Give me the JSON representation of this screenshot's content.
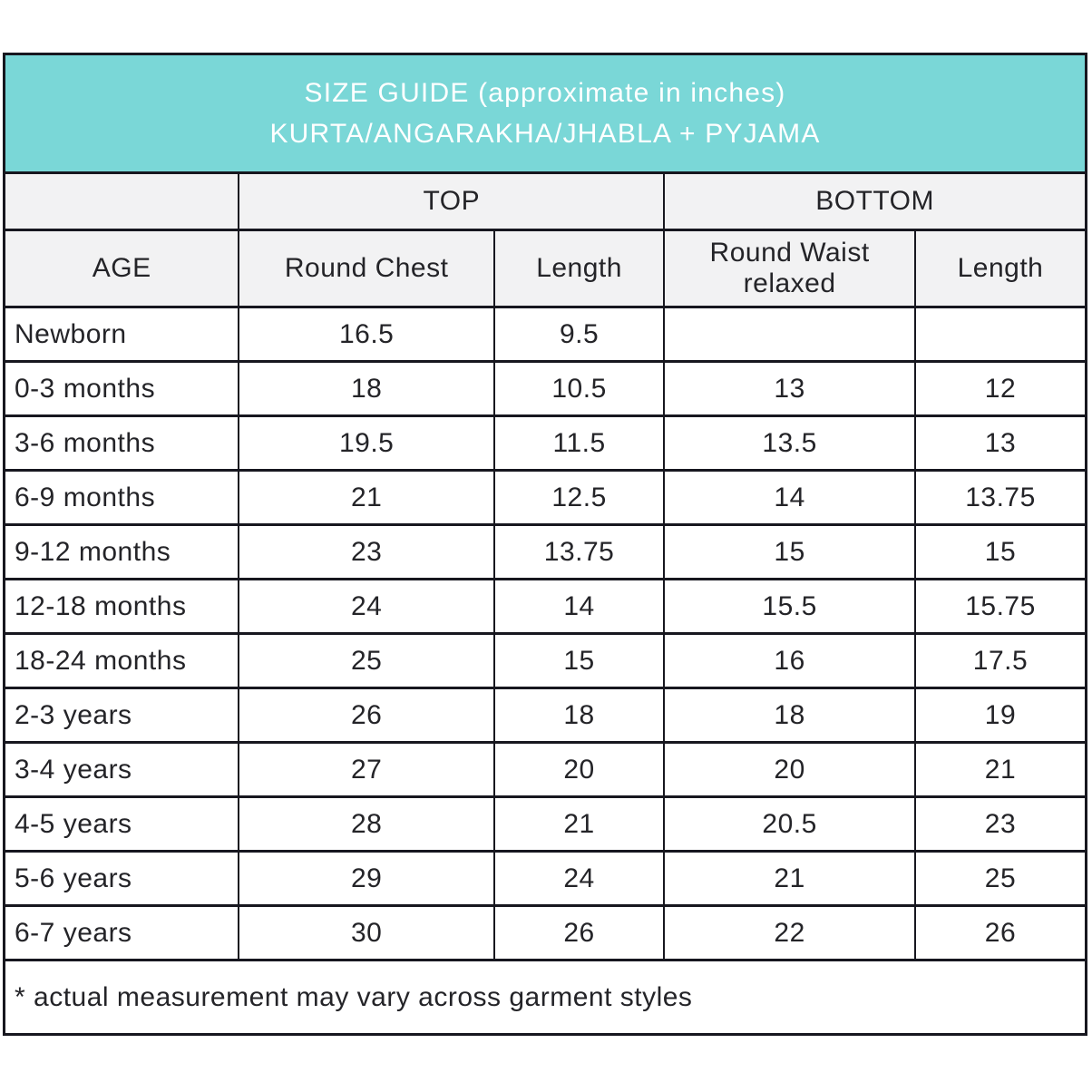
{
  "header": {
    "title_line1": "SIZE GUIDE (approximate in inches)",
    "title_line2": "KURTA/ANGARAKHA/JHABLA + PYJAMA"
  },
  "group_headers": {
    "age_spacer": "",
    "top": "TOP",
    "bottom": "BOTTOM"
  },
  "column_headers": {
    "age": "AGE",
    "top_round_chest": "Round Chest",
    "top_length": "Length",
    "bottom_round_waist": "Round Waist relaxed",
    "bottom_length": "Length"
  },
  "footnote": "* actual measurement may vary across garment styles",
  "colors": {
    "header_bg": "#7ad7d7",
    "header_text": "#ffffff",
    "subheader_bg": "#f2f2f3",
    "border": "#17171f",
    "text": "#242428"
  },
  "chart_data": {
    "type": "table",
    "title": "SIZE GUIDE (approximate in inches) KURTA/ANGARAKHA/JHABLA + PYJAMA",
    "column_groups": [
      "",
      "TOP",
      "TOP",
      "BOTTOM",
      "BOTTOM"
    ],
    "columns": [
      "AGE",
      "Round Chest",
      "Length",
      "Round Waist relaxed",
      "Length"
    ],
    "rows": [
      [
        "Newborn",
        "16.5",
        "9.5",
        "",
        ""
      ],
      [
        "0-3 months",
        "18",
        "10.5",
        "13",
        "12"
      ],
      [
        "3-6 months",
        "19.5",
        "11.5",
        "13.5",
        "13"
      ],
      [
        "6-9 months",
        "21",
        "12.5",
        "14",
        "13.75"
      ],
      [
        "9-12 months",
        "23",
        "13.75",
        "15",
        "15"
      ],
      [
        "12-18 months",
        "24",
        "14",
        "15.5",
        "15.75"
      ],
      [
        "18-24 months",
        "25",
        "15",
        "16",
        "17.5"
      ],
      [
        "2-3 years",
        "26",
        "18",
        "18",
        "19"
      ],
      [
        "3-4 years",
        "27",
        "20",
        "20",
        "21"
      ],
      [
        "4-5 years",
        "28",
        "21",
        "20.5",
        "23"
      ],
      [
        "5-6 years",
        "29",
        "24",
        "21",
        "25"
      ],
      [
        "6-7 years",
        "30",
        "26",
        "22",
        "26"
      ]
    ],
    "footnote": "* actual measurement may vary across garment styles"
  }
}
